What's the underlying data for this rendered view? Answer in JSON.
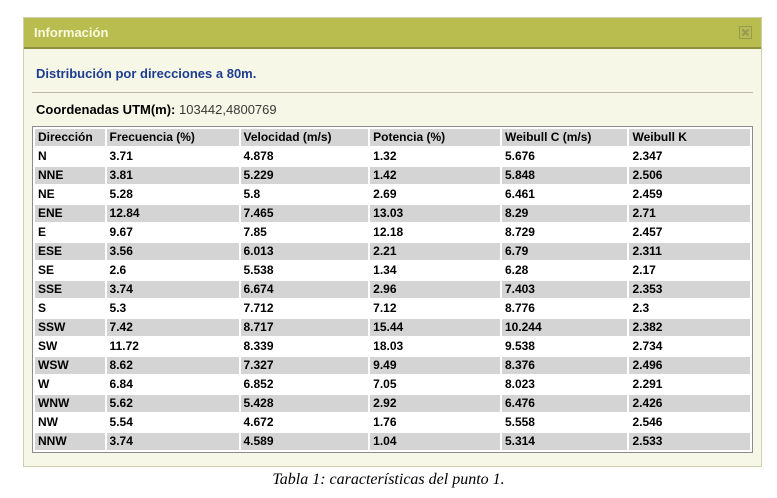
{
  "dialog": {
    "title": "Información"
  },
  "content": {
    "heading": "Distribución por direcciones a 80m.",
    "coordinates_label": "Coordenadas UTM(m):",
    "coordinates_value": "103442,4800769"
  },
  "table": {
    "columns": [
      "Dirección",
      "Frecuencia (%)",
      "Velocidad (m/s)",
      "Potencia (%)",
      "Weibull C (m/s)",
      "Weibull K"
    ],
    "rows": [
      [
        "N",
        "3.71",
        "4.878",
        "1.32",
        "5.676",
        "2.347"
      ],
      [
        "NNE",
        "3.81",
        "5.229",
        "1.42",
        "5.848",
        "2.506"
      ],
      [
        "NE",
        "5.28",
        "5.8",
        "2.69",
        "6.461",
        "2.459"
      ],
      [
        "ENE",
        "12.84",
        "7.465",
        "13.03",
        "8.29",
        "2.71"
      ],
      [
        "E",
        "9.67",
        "7.85",
        "12.18",
        "8.729",
        "2.457"
      ],
      [
        "ESE",
        "3.56",
        "6.013",
        "2.21",
        "6.79",
        "2.311"
      ],
      [
        "SE",
        "2.6",
        "5.538",
        "1.34",
        "6.28",
        "2.17"
      ],
      [
        "SSE",
        "3.74",
        "6.674",
        "2.96",
        "7.403",
        "2.353"
      ],
      [
        "S",
        "5.3",
        "7.712",
        "7.12",
        "8.776",
        "2.3"
      ],
      [
        "SSW",
        "7.42",
        "8.717",
        "15.44",
        "10.244",
        "2.382"
      ],
      [
        "SW",
        "11.72",
        "8.339",
        "18.03",
        "9.538",
        "2.734"
      ],
      [
        "WSW",
        "8.62",
        "7.327",
        "9.49",
        "8.376",
        "2.496"
      ],
      [
        "W",
        "6.84",
        "6.852",
        "7.05",
        "8.023",
        "2.291"
      ],
      [
        "WNW",
        "5.62",
        "5.428",
        "2.92",
        "6.476",
        "2.426"
      ],
      [
        "NW",
        "5.54",
        "4.672",
        "1.76",
        "5.558",
        "2.546"
      ],
      [
        "NNW",
        "3.74",
        "4.589",
        "1.04",
        "5.314",
        "2.533"
      ]
    ]
  },
  "caption": "Tabla 1: características del punto 1.",
  "colors": {
    "titlebar": "#b9bd50",
    "titlebar_border": "#8d913e",
    "titlebar_text": "#f9f9dd",
    "dialog_bg": "#f7f7e8",
    "heading_blue": "#1d3d8f",
    "row_stripe_gray": "#d4d4d4",
    "table_border": "#8c8c8c"
  }
}
